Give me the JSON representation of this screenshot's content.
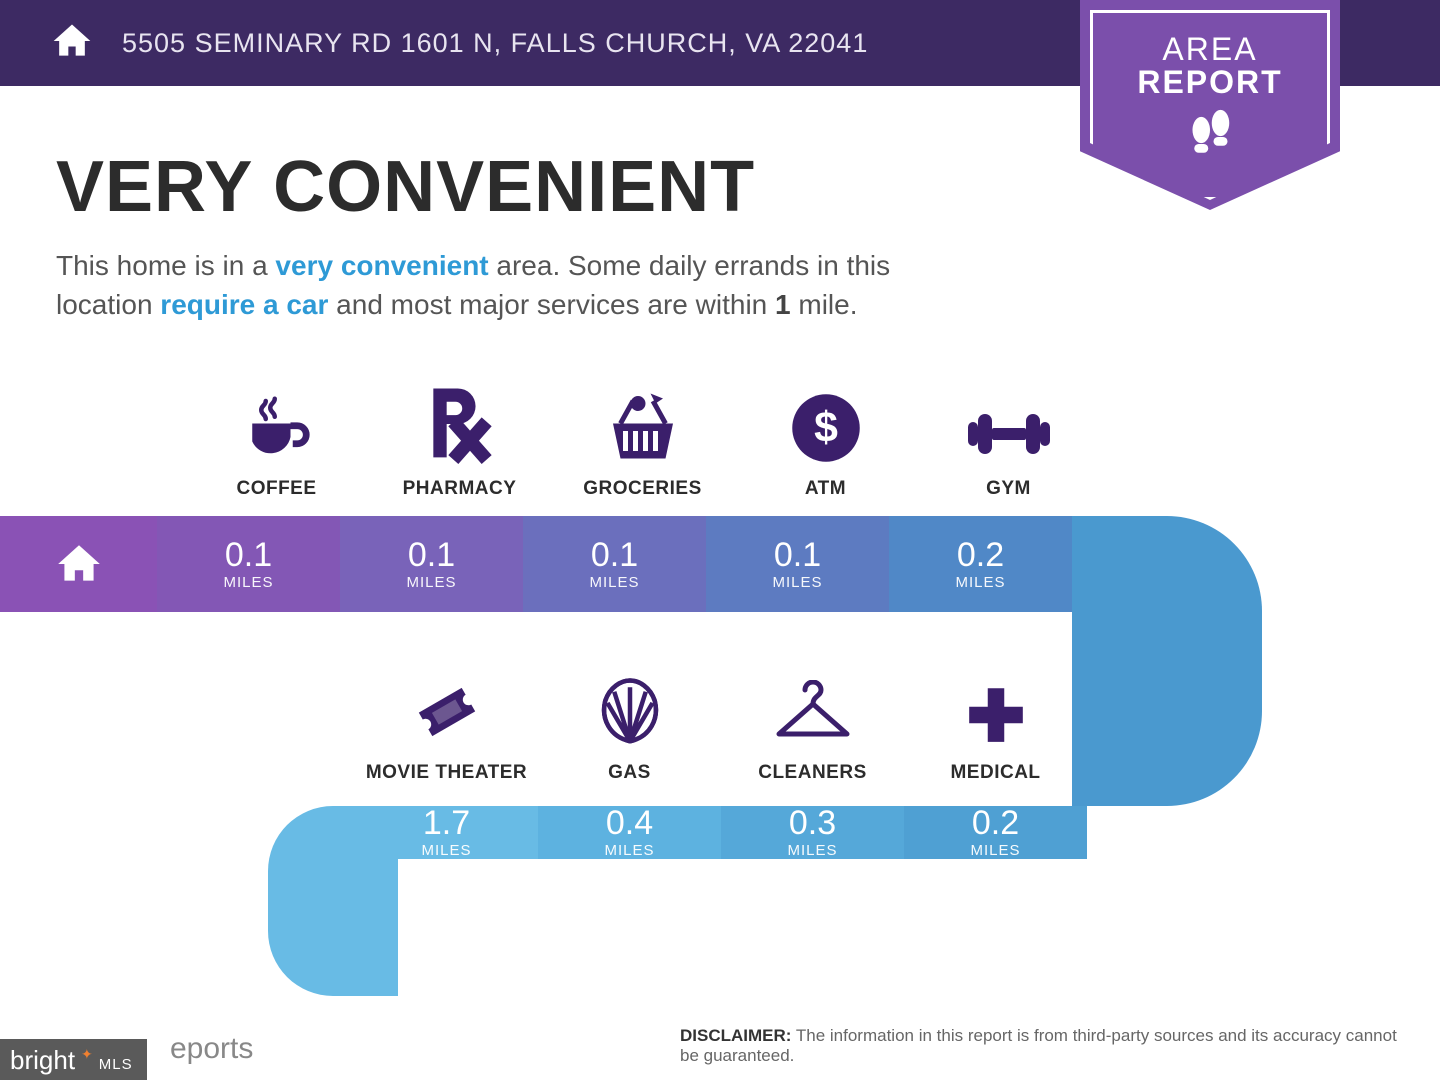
{
  "colors": {
    "header_bg": "#3d2a63",
    "badge_bg": "#7b4fab",
    "icon_color": "#3b1f6b",
    "highlight": "#2e9ad6",
    "road_segments_top": [
      "#8a52b5",
      "#8357b5",
      "#7963b9",
      "#6b6fbd",
      "#5d7bc1",
      "#5088c7"
    ],
    "road_curve_right": "#4a99cf",
    "road_segments_bottom": [
      "#68bbe5",
      "#5db2e0",
      "#55a8d9",
      "#4fa0d3"
    ],
    "road_curve_left": "#68bbe5"
  },
  "header": {
    "address": "5505 SEMINARY RD 1601 N, FALLS CHURCH, VA 22041",
    "badge_line1": "AREA",
    "badge_line2": "REPORT"
  },
  "headline": {
    "title": "VERY CONVENIENT",
    "sub_pre": "This home is in a ",
    "sub_hl1": "very convenient",
    "sub_mid1": " area. Some daily errands in this location ",
    "sub_hl2": "require a car",
    "sub_mid2": " and most major services are within ",
    "sub_bold": "1",
    "sub_end": " mile."
  },
  "row1": [
    {
      "label": "COFFEE",
      "distance": "0.1",
      "unit": "MILES"
    },
    {
      "label": "PHARMACY",
      "distance": "0.1",
      "unit": "MILES"
    },
    {
      "label": "GROCERIES",
      "distance": "0.1",
      "unit": "MILES"
    },
    {
      "label": "ATM",
      "distance": "0.1",
      "unit": "MILES"
    },
    {
      "label": "GYM",
      "distance": "0.2",
      "unit": "MILES"
    }
  ],
  "row2": [
    {
      "label": "MOVIE THEATER",
      "distance": "1.7",
      "unit": "MILES"
    },
    {
      "label": "GAS",
      "distance": "0.4",
      "unit": "MILES"
    },
    {
      "label": "CLEANERS",
      "distance": "0.3",
      "unit": "MILES"
    },
    {
      "label": "MEDICAL",
      "distance": "0.2",
      "unit": "MILES"
    }
  ],
  "footer": {
    "reports_label": "eports",
    "disclaimer_label": "DISCLAIMER:",
    "disclaimer_text": " The information in this report is from third-party sources and its accuracy cannot be guaranteed."
  },
  "watermark": {
    "brand": "bright",
    "suffix": "MLS"
  }
}
